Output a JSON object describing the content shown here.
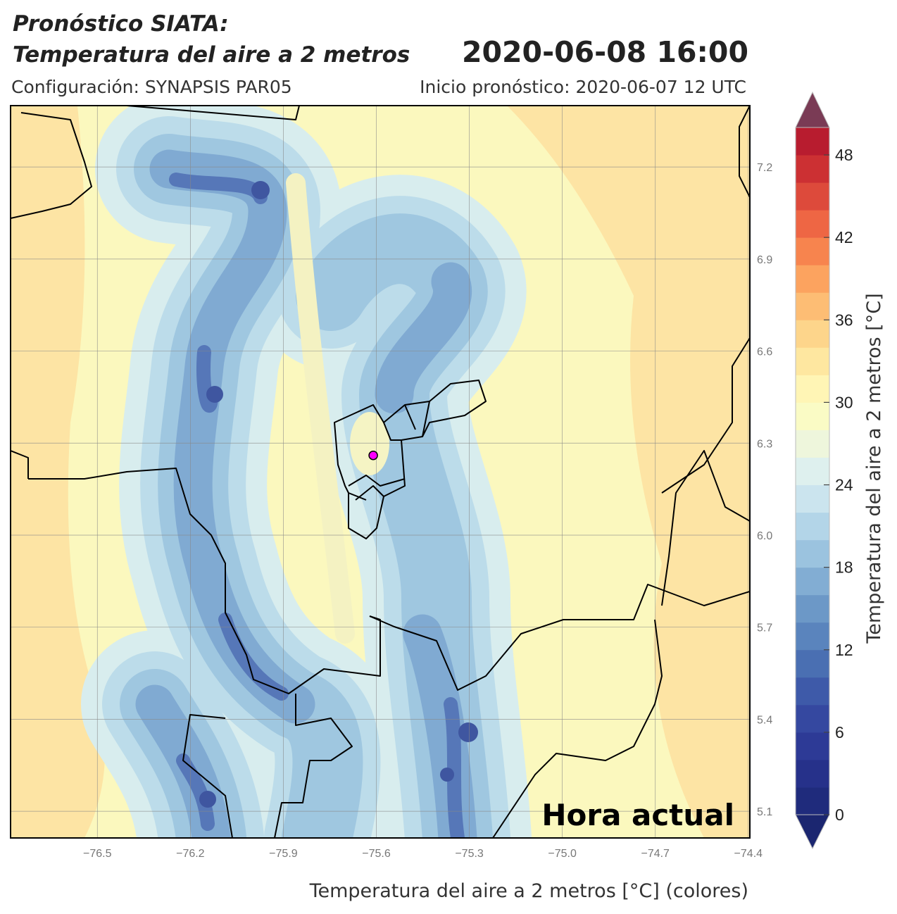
{
  "header": {
    "title": "Pronóstico SIATA:",
    "subtitle": "Temperatura del aire a 2 metros",
    "date": "2020-06-08 16:00",
    "config": "Configuración: SYNAPSIS PAR05",
    "init": "Inicio pronóstico: 2020-06-07 12 UTC"
  },
  "chart_data": {
    "type": "map",
    "xlabel": "Temperatura del aire a 2 metros [°C] (colores)",
    "annotation": "Hora actual",
    "xlim": [
      -76.78,
      -74.395
    ],
    "ylim": [
      5.013,
      7.4
    ],
    "xticks": [
      {
        "value": -76.5,
        "label": "−76.5"
      },
      {
        "value": -76.2,
        "label": "−76.2"
      },
      {
        "value": -75.9,
        "label": "−75.9"
      },
      {
        "value": -75.6,
        "label": "−75.6"
      },
      {
        "value": -75.3,
        "label": "−75.3"
      },
      {
        "value": -75.0,
        "label": "−75.0"
      },
      {
        "value": -74.7,
        "label": "−74.7"
      },
      {
        "value": -74.4,
        "label": "−74.4"
      }
    ],
    "yticks": [
      5.1,
      5.4,
      5.7,
      {
        "value": 6,
        "label": "6.0"
      },
      6.3,
      6.6,
      6.9,
      7.2
    ],
    "grid": true,
    "marker": {
      "x": -75.61,
      "y": 6.26,
      "color": "#ff00ff"
    },
    "colorbar": {
      "label": "Temperatura del aire a 2 metros [°C]",
      "lim": [
        0,
        50
      ],
      "ticks": [
        0,
        6,
        12,
        18,
        24,
        30,
        36,
        42,
        48
      ],
      "colors": [
        "#1f2b7c",
        "#26318a",
        "#2d3a96",
        "#3548a0",
        "#3e5aa9",
        "#4a6fb2",
        "#5a84bd",
        "#6c98c7",
        "#82add3",
        "#9bc3df",
        "#b3d5e8",
        "#cbe4ee",
        "#def0ee",
        "#eef6dc",
        "#fafbc5",
        "#fff5b5",
        "#fee7a0",
        "#fdd58b",
        "#fdbd74",
        "#fca35f",
        "#f7844e",
        "#ee6644",
        "#dd4a3b",
        "#cc3033",
        "#b81c2f"
      ],
      "extend_colors": [
        "#1b2670",
        "#7a3b55"
      ]
    }
  }
}
